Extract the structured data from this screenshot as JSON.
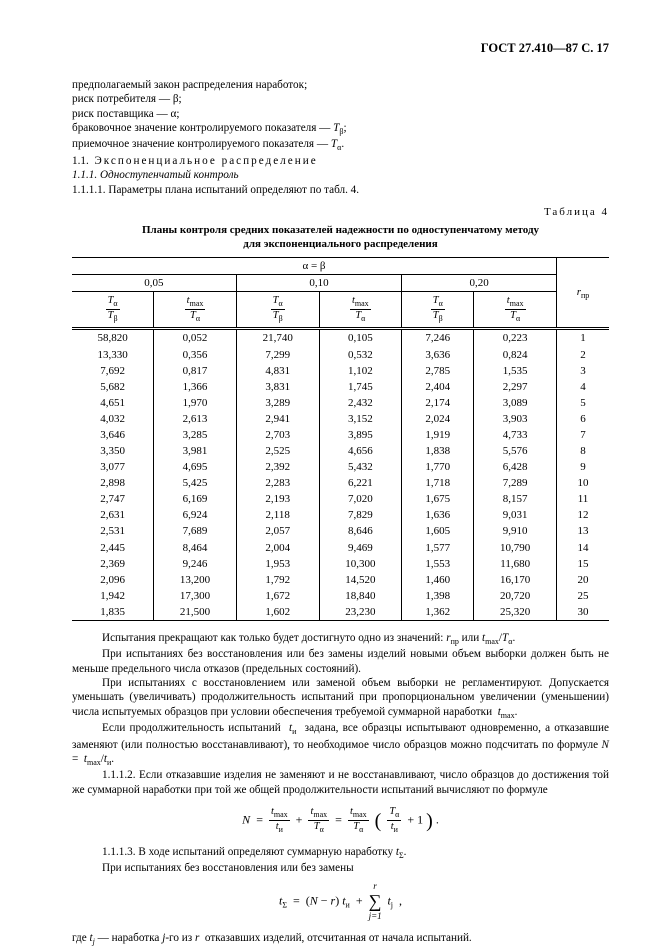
{
  "header": "ГОСТ 27.410—87 С. 17",
  "intro_lines": [
    "предполагаемый закон распределения наработок;",
    "риск потребителя — β;",
    "риск поставщика — α;",
    "браковочное значение контролируемого показателя — T_β;",
    "приемочное значение контролируемого показателя — T_α."
  ],
  "sec_1_1_label": "1.1.",
  "sec_1_1_title": "Экспоненциальное распределение",
  "sec_1_1_1": "1.1.1. Одноступенчатый контроль",
  "sec_1_1_1_1": "1.1.1.1. Параметры плана испытаний определяют по табл. 4.",
  "table_label": "Таблица  4",
  "table_title_line1": "Планы контроля средних показателей надежности по одноступенчатому методу",
  "table_title_line2": "для экспоненциального распределения",
  "alpha_beta_header": "α = β",
  "group_labels": [
    "0,05",
    "0,10",
    "0,20"
  ],
  "col_headers": {
    "ta_tb": {
      "num": "T_α",
      "den": "T_β"
    },
    "tmax_ta": {
      "num": "t_max",
      "den": "T_α"
    },
    "r_label": "r_пр"
  },
  "rows": [
    {
      "c1": "58,820",
      "c2": "0,052",
      "c3": "21,740",
      "c4": "0,105",
      "c5": "7,246",
      "c6": "0,223",
      "r": "1"
    },
    {
      "c1": "13,330",
      "c2": "0,356",
      "c3": "7,299",
      "c4": "0,532",
      "c5": "3,636",
      "c6": "0,824",
      "r": "2"
    },
    {
      "c1": "7,692",
      "c2": "0,817",
      "c3": "4,831",
      "c4": "1,102",
      "c5": "2,785",
      "c6": "1,535",
      "r": "3"
    },
    {
      "c1": "5,682",
      "c2": "1,366",
      "c3": "3,831",
      "c4": "1,745",
      "c5": "2,404",
      "c6": "2,297",
      "r": "4"
    },
    {
      "c1": "4,651",
      "c2": "1,970",
      "c3": "3,289",
      "c4": "2,432",
      "c5": "2,174",
      "c6": "3,089",
      "r": "5"
    },
    {
      "c1": "4,032",
      "c2": "2,613",
      "c3": "2,941",
      "c4": "3,152",
      "c5": "2,024",
      "c6": "3,903",
      "r": "6"
    },
    {
      "c1": "3,646",
      "c2": "3,285",
      "c3": "2,703",
      "c4": "3,895",
      "c5": "1,919",
      "c6": "4,733",
      "r": "7"
    },
    {
      "c1": "3,350",
      "c2": "3,981",
      "c3": "2,525",
      "c4": "4,656",
      "c5": "1,838",
      "c6": "5,576",
      "r": "8"
    },
    {
      "c1": "3,077",
      "c2": "4,695",
      "c3": "2,392",
      "c4": "5,432",
      "c5": "1,770",
      "c6": "6,428",
      "r": "9"
    },
    {
      "c1": "2,898",
      "c2": "5,425",
      "c3": "2,283",
      "c4": "6,221",
      "c5": "1,718",
      "c6": "7,289",
      "r": "10"
    },
    {
      "c1": "2,747",
      "c2": "6,169",
      "c3": "2,193",
      "c4": "7,020",
      "c5": "1,675",
      "c6": "8,157",
      "r": "11"
    },
    {
      "c1": "2,631",
      "c2": "6,924",
      "c3": "2,118",
      "c4": "7,829",
      "c5": "1,636",
      "c6": "9,031",
      "r": "12"
    },
    {
      "c1": "2,531",
      "c2": "7,689",
      "c3": "2,057",
      "c4": "8,646",
      "c5": "1,605",
      "c6": "9,910",
      "r": "13"
    },
    {
      "c1": "2,445",
      "c2": "8,464",
      "c3": "2,004",
      "c4": "9,469",
      "c5": "1,577",
      "c6": "10,790",
      "r": "14"
    },
    {
      "c1": "2,369",
      "c2": "9,246",
      "c3": "1,953",
      "c4": "10,300",
      "c5": "1,553",
      "c6": "11,680",
      "r": "15"
    },
    {
      "c1": "2,096",
      "c2": "13,200",
      "c3": "1,792",
      "c4": "14,520",
      "c5": "1,460",
      "c6": "16,170",
      "r": "20"
    },
    {
      "c1": "1,942",
      "c2": "17,300",
      "c3": "1,672",
      "c4": "18,840",
      "c5": "1,398",
      "c6": "20,720",
      "r": "25"
    },
    {
      "c1": "1,835",
      "c2": "21,500",
      "c3": "1,602",
      "c4": "23,230",
      "c5": "1,362",
      "c6": "25,320",
      "r": "30"
    }
  ],
  "post_table_p1": "Испытания прекращают как только будет достигнуто одно из значений: r_пр или t_max/T_α.",
  "post_table_p2": "При испытаниях без восстановления или без замены изделий новыми объем выборки должен быть не меньше предельного числа отказов (предельных состояний).",
  "post_table_p3": "При испытаниях с восстановлением или заменой объем выборки не регламентируют. Допускается уменьшать (увеличивать) продолжительность испытаний при пропорциональном увеличении (уменьшении) числа испытуемых образцов при условии обеспечения требуемой суммарной наработки  t_max.",
  "post_table_p4": "Если продолжительность испытаний  t_и  задана, все образцы испытывают одновременно, а отказавшие заменяют (или полностью восстанавливают), то необходимое число образцов можно подсчитать по формуле N =  t_max/t_и.",
  "sec_1_1_1_2": "1.1.1.2. Если отказавшие изделия не заменяют и не восстанавливают, число образцов до достижения той же суммарной наработки при той же общей продолжительности испытаний вычисляют по формуле",
  "formula1": "N = t_max/t_и + t_max/T_α = t_max/T_α ( T_α/t_и + 1 ) .",
  "sec_1_1_1_3": "1.1.1.3. В ходе испытаний определяют суммарную наработку t_Σ.",
  "sec_1_1_1_3b": "При испытаниях без восстановления или без замены",
  "formula2": "t_Σ = (N − r) t_и + Σ t_j ,",
  "footer_line": "где t_j — наработка j-го из r  отказавших изделий, отсчитанная от начала испытаний."
}
